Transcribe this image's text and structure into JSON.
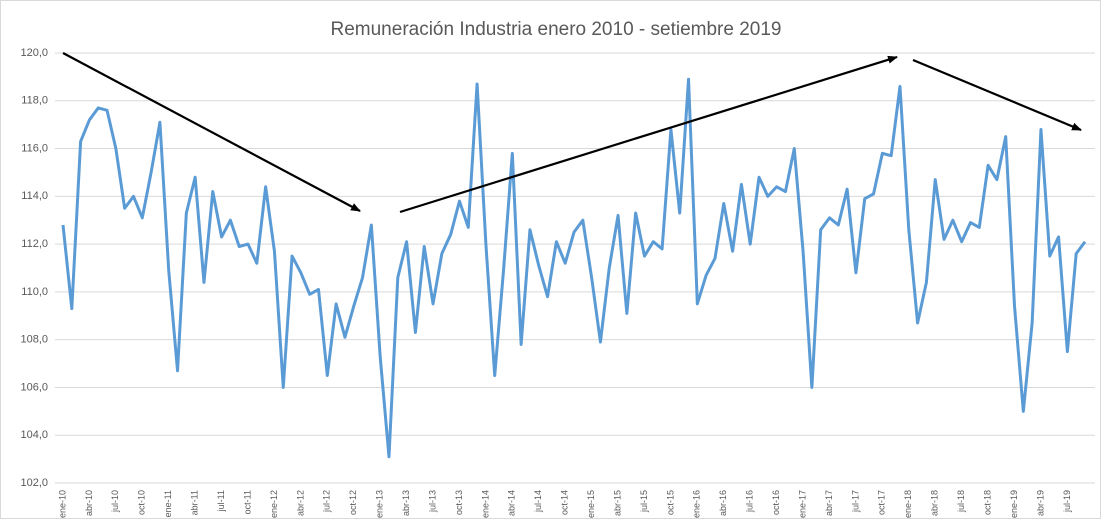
{
  "chart_data": {
    "type": "line",
    "title": "Remuneración Industria enero 2010 - setiembre 2019",
    "categories": [
      "ene-10",
      null,
      null,
      "abr-10",
      null,
      null,
      "jul-10",
      null,
      null,
      "oct-10",
      null,
      null,
      "ene-11",
      null,
      null,
      "abr-11",
      null,
      null,
      "jul-11",
      null,
      null,
      "oct-11",
      null,
      null,
      "ene-12",
      null,
      null,
      "abr-12",
      null,
      null,
      "jul-12",
      null,
      null,
      "oct-12",
      null,
      null,
      "ene-13",
      null,
      null,
      "abr-13",
      null,
      null,
      "jul-13",
      null,
      null,
      "oct-13",
      null,
      null,
      "ene-14",
      null,
      null,
      "abr-14",
      null,
      null,
      "jul-14",
      null,
      null,
      "oct-14",
      null,
      null,
      "ene-15",
      null,
      null,
      "abr-15",
      null,
      null,
      "jul-15",
      null,
      null,
      "oct-15",
      null,
      null,
      "ene-16",
      null,
      null,
      "abr-16",
      null,
      null,
      "jul-16",
      null,
      null,
      "oct-16",
      null,
      null,
      "ene-17",
      null,
      null,
      "abr-17",
      null,
      null,
      "jul-17",
      null,
      null,
      "oct-17",
      null,
      null,
      "ene-18",
      null,
      null,
      "abr-18",
      null,
      null,
      "jul-18",
      null,
      null,
      "oct-18",
      null,
      null,
      "ene-19",
      null,
      null,
      "abr-19",
      null,
      null,
      "jul-19",
      null,
      null
    ],
    "values": [
      112.8,
      109.3,
      116.3,
      117.2,
      117.7,
      117.6,
      116.0,
      113.5,
      114.0,
      113.1,
      115.0,
      117.1,
      110.9,
      106.7,
      113.3,
      114.8,
      110.4,
      114.2,
      112.3,
      113.0,
      111.9,
      112.0,
      111.2,
      114.4,
      111.7,
      106.0,
      111.5,
      110.8,
      109.9,
      110.1,
      106.5,
      109.5,
      108.1,
      109.4,
      110.6,
      112.8,
      107.3,
      103.1,
      110.6,
      112.1,
      108.3,
      111.9,
      109.5,
      111.6,
      112.4,
      113.8,
      112.7,
      118.7,
      112.0,
      106.5,
      110.9,
      115.8,
      107.8,
      112.6,
      111.1,
      109.8,
      112.1,
      111.2,
      112.5,
      113.0,
      110.6,
      107.9,
      111.0,
      113.2,
      109.1,
      113.3,
      111.5,
      112.1,
      111.8,
      116.8,
      113.3,
      118.9,
      109.5,
      110.7,
      111.4,
      113.7,
      111.7,
      114.5,
      112.0,
      114.8,
      114.0,
      114.4,
      114.2,
      116.0,
      111.7,
      106.0,
      112.6,
      113.1,
      112.8,
      114.3,
      110.8,
      113.9,
      114.1,
      115.8,
      115.7,
      118.6,
      112.6,
      108.7,
      110.4,
      114.7,
      112.2,
      113.0,
      112.1,
      112.9,
      112.7,
      115.3,
      114.7,
      116.5,
      109.4,
      105.0,
      108.7,
      116.8,
      111.5,
      112.3,
      107.5,
      111.6,
      112.1
    ],
    "color": "#5b9bd5",
    "ylim": [
      102,
      120
    ],
    "yticks": [
      {
        "value": 102,
        "label": "102,0"
      },
      {
        "value": 104,
        "label": "104,0"
      },
      {
        "value": 106,
        "label": "106,0"
      },
      {
        "value": 108,
        "label": "108,0"
      },
      {
        "value": 110,
        "label": "110,0"
      },
      {
        "value": 112,
        "label": "112,0"
      },
      {
        "value": 114,
        "label": "114,0"
      },
      {
        "value": 116,
        "label": "116,0"
      },
      {
        "value": 118,
        "label": "118,0"
      },
      {
        "value": 120,
        "label": "120,0"
      }
    ],
    "grid": true
  }
}
